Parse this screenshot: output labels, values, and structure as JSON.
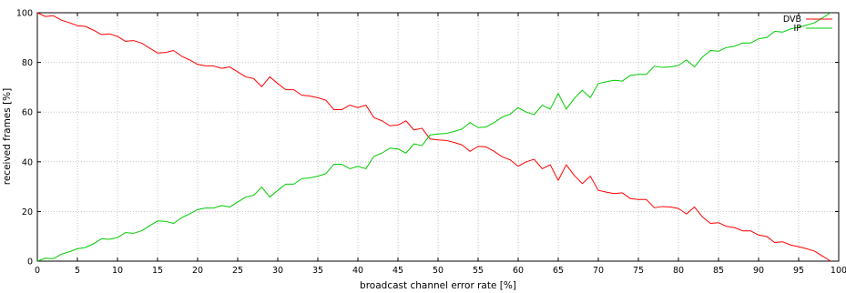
{
  "chart_data": {
    "type": "line",
    "title": "",
    "xlabel": "broadcast channel error rate [%]",
    "ylabel": "received frames [%]",
    "xlim": [
      0,
      100
    ],
    "ylim": [
      0,
      100
    ],
    "xticks": [
      "0",
      "5",
      "10",
      "15",
      "20",
      "25",
      "30",
      "35",
      "40",
      "45",
      "50",
      "55",
      "60",
      "65",
      "70",
      "75",
      "80",
      "85",
      "90",
      "95",
      "100"
    ],
    "yticks": [
      "0",
      "20",
      "40",
      "60",
      "80",
      "100"
    ],
    "grid": true,
    "legend_position": "top-right",
    "x": [
      0,
      1,
      2,
      3,
      4,
      5,
      6,
      7,
      8,
      9,
      10,
      11,
      12,
      13,
      14,
      15,
      16,
      17,
      18,
      19,
      20,
      21,
      22,
      23,
      24,
      25,
      26,
      27,
      28,
      29,
      30,
      31,
      32,
      33,
      34,
      35,
      36,
      37,
      38,
      39,
      40,
      41,
      42,
      43,
      44,
      45,
      46,
      47,
      48,
      49,
      50,
      51,
      52,
      53,
      54,
      55,
      56,
      57,
      58,
      59,
      60,
      61,
      62,
      63,
      64,
      65,
      66,
      67,
      68,
      69,
      70,
      71,
      72,
      73,
      74,
      75,
      76,
      77,
      78,
      79,
      80,
      81,
      82,
      83,
      84,
      85,
      86,
      87,
      88,
      89,
      90,
      91,
      92,
      93,
      94,
      95,
      96,
      97,
      98,
      99
    ],
    "series": [
      {
        "name": "DVB",
        "color": "#ff0000",
        "values": [
          100,
          98.5,
          98.8,
          97,
          96,
          94.8,
          94.5,
          93,
          91.2,
          91.5,
          90.5,
          88.5,
          88.8,
          87.8,
          85.8,
          83.8,
          84,
          84.8,
          82.5,
          81,
          79.2,
          78.6,
          78.6,
          77.6,
          78.2,
          76.2,
          74.2,
          73.5,
          70.2,
          74.2,
          71.5,
          69,
          69,
          66.8,
          66.5,
          65.8,
          64.8,
          61,
          61,
          62.8,
          61.8,
          62.8,
          57.8,
          56.5,
          54.5,
          54.8,
          56.5,
          52.8,
          53.5,
          49.2,
          48.8,
          48.6,
          47.8,
          46.8,
          44.2,
          46.2,
          46,
          44.2,
          42,
          40.8,
          38.2,
          40,
          41,
          37.2,
          38.8,
          32.5,
          38.8,
          34.5,
          31.2,
          34.2,
          28.5,
          27.8,
          27.2,
          27.5,
          25.2,
          24.8,
          24.8,
          21.5,
          22,
          21.8,
          21.2,
          19,
          21.8,
          17.8,
          15.2,
          15.5,
          14,
          13.5,
          12.2,
          12.2,
          10.5,
          10,
          7.5,
          7.8,
          6.5,
          5.8,
          5,
          4,
          2,
          0
        ]
      },
      {
        "name": "IP",
        "color": "#00cc00",
        "values": [
          0,
          1.2,
          1,
          2.8,
          3.8,
          5,
          5.5,
          7,
          9,
          8.8,
          9.5,
          11.5,
          11.2,
          12.2,
          14.2,
          16.2,
          16,
          15.2,
          17.5,
          19,
          20.8,
          21.4,
          21.4,
          22.4,
          21.8,
          23.8,
          25.8,
          26.5,
          29.8,
          25.8,
          28.5,
          31,
          31,
          33.2,
          33.5,
          34.2,
          35.2,
          39,
          39,
          37.2,
          38.2,
          37.2,
          42.2,
          43.5,
          45.5,
          45.2,
          43.5,
          47.2,
          46.5,
          50.8,
          51.2,
          51.4,
          52.2,
          53.2,
          55.8,
          53.8,
          54,
          55.8,
          58,
          59.2,
          61.8,
          60,
          59,
          62.8,
          61.2,
          67.5,
          61.2,
          65.5,
          68.8,
          65.8,
          71.5,
          72.2,
          72.8,
          72.5,
          74.8,
          75.2,
          75.2,
          78.5,
          78,
          78.2,
          78.8,
          81,
          78.2,
          82.2,
          84.8,
          84.5,
          86,
          86.5,
          87.8,
          87.8,
          89.5,
          90,
          92.5,
          92.2,
          93.5,
          94.2,
          95,
          96,
          98,
          100
        ]
      }
    ]
  }
}
